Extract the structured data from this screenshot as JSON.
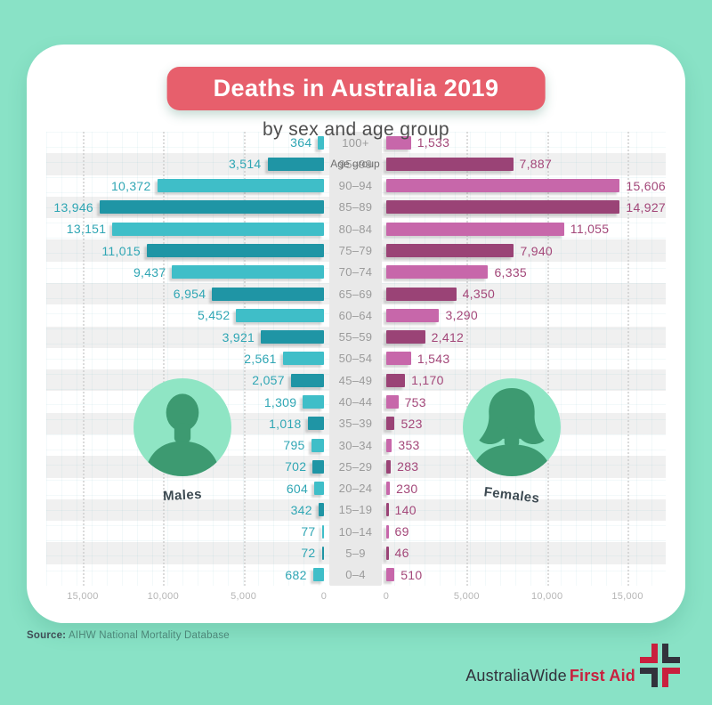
{
  "title": "Deaths in Australia 2019",
  "subtitle": "by sex and age group",
  "axis": {
    "center_label": "Age group",
    "tick_values": [
      0,
      5000,
      10000,
      15000
    ],
    "left_tick_labels": [
      "0",
      "5,000",
      "10,000",
      "15,000"
    ],
    "right_tick_labels": [
      "0",
      "5,000",
      "10,000",
      "15,000"
    ]
  },
  "legend": {
    "male_label": "Males",
    "female_label": "Females"
  },
  "source": {
    "prefix": "Source:",
    "text": "AIHW National Mortality Database"
  },
  "logo": {
    "brand_primary": "AustraliaWide",
    "brand_secondary": "First Aid"
  },
  "icons": {
    "male_avatar": "male-silhouette-icon",
    "female_avatar": "female-silhouette-icon",
    "logo_icon": "first-aid-cross-icon"
  },
  "colors": {
    "background": "#89E2C6",
    "card": "#FFFFFF",
    "banner": "#E75F6C",
    "male_light": "#3FBEC8",
    "male_dark": "#1F95A5",
    "male_label": "#2FA6B4",
    "female_light": "#C767AA",
    "female_dark": "#9A4376",
    "female_label": "#A34779",
    "stripe": "#F0F0F0",
    "center_band": "#E9E9E9",
    "age_label": "#9B9B9B",
    "tick_label": "#B5B5B5",
    "avatar_circle": "#8FE5C4",
    "avatar_figure": "#3D9A71",
    "logo_red": "#C9203E",
    "logo_dark": "#32323C"
  },
  "chart_data": {
    "type": "bar",
    "subtype": "population-pyramid",
    "orientation": "horizontal",
    "title": "Deaths in Australia 2019",
    "subtitle": "by sex and age group",
    "categories_axis_label": "Age group",
    "categories": [
      "100+",
      "95–99",
      "90–94",
      "85–89",
      "80–84",
      "75–79",
      "70–74",
      "65–69",
      "60–64",
      "55–59",
      "50–54",
      "45–49",
      "40–44",
      "35–39",
      "30–34",
      "25–29",
      "20–24",
      "15–19",
      "10–14",
      "5–9",
      "0–4"
    ],
    "series": [
      {
        "name": "Males",
        "side": "left",
        "values": [
          364,
          3514,
          10372,
          13946,
          13151,
          11015,
          9437,
          6954,
          5452,
          3921,
          2561,
          2057,
          1309,
          1018,
          795,
          702,
          604,
          342,
          77,
          72,
          682
        ]
      },
      {
        "name": "Females",
        "side": "right",
        "values": [
          1533,
          7887,
          15606,
          14927,
          11055,
          7940,
          6335,
          4350,
          3290,
          2412,
          1543,
          1170,
          753,
          523,
          353,
          283,
          230,
          140,
          69,
          46,
          510
        ]
      }
    ],
    "xlim_each_side": [
      0,
      17266
    ],
    "ticks_each_side": [
      0,
      5000,
      10000,
      15000
    ],
    "grid": "dotted-vertical",
    "value_labels_shown": true,
    "legend_position": "inside-avatars"
  }
}
